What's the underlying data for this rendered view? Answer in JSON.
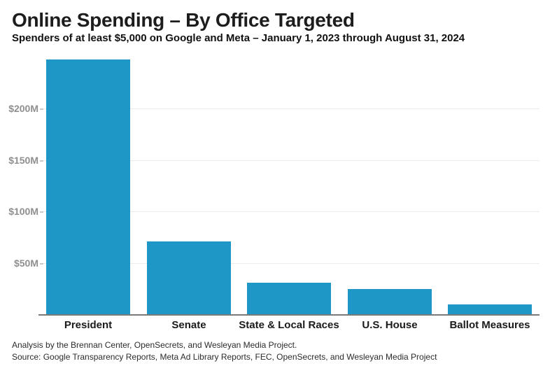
{
  "header": {
    "title": "Online Spending – By Office Targeted",
    "subtitle": "Spenders of at least $5,000 on Google and Meta – January 1, 2023 through August 31, 2024"
  },
  "footer": {
    "analysis_line": "Analysis by the Brennan Center, OpenSecrets, and Wesleyan Media Project.",
    "source_line": "Source: Google Transparency Reports, Meta Ad Library Reports, FEC, OpenSecrets, and Wesleyan Media Project"
  },
  "colors": {
    "bar": "#1e96c6",
    "gridline": "#ececec",
    "axis_line": "#7a7a7a",
    "y_tick_label": "#8f8f8f",
    "title_text": "#1d1d1d",
    "category_label": "#1a1a1a",
    "footer_text": "#2b2b2b"
  },
  "chart_data": {
    "type": "bar",
    "title": "Online Spending – By Office Targeted",
    "subtitle": "Spenders of at least $5,000 on Google and Meta – January 1, 2023 through August 31, 2024",
    "categories": [
      "President",
      "Senate",
      "State & Local Races",
      "U.S. House",
      "Ballot Measures"
    ],
    "values": [
      247,
      71,
      31,
      25,
      10
    ],
    "unit": "$M",
    "yticks": [
      {
        "value": 50,
        "label": "$50M"
      },
      {
        "value": 100,
        "label": "$100M"
      },
      {
        "value": 150,
        "label": "$150M"
      },
      {
        "value": 200,
        "label": "$200M"
      }
    ],
    "ylim": [
      0,
      250
    ],
    "xlabel": "",
    "ylabel": "",
    "grid": "horizontal",
    "legend_position": "none"
  }
}
